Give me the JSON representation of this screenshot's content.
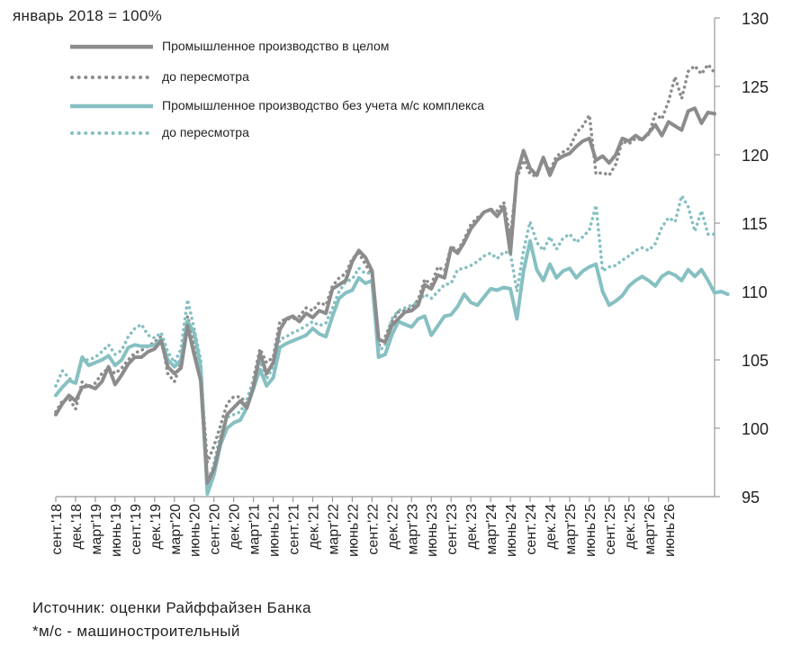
{
  "chart_data": {
    "type": "line",
    "ylabel": "январь 2018 = 100%",
    "ylim": [
      95,
      130
    ],
    "y_ticks": [
      95,
      100,
      105,
      110,
      115,
      120,
      125,
      130
    ],
    "y_axis_side": "right",
    "x_tick_labels": [
      "сент.'18",
      "дек.'18",
      "март'19",
      "июнь'19",
      "сент.'19",
      "дек.'19",
      "март'20",
      "июнь'20",
      "сент.'20",
      "дек.'20",
      "март'21",
      "июнь'21",
      "сент.'21",
      "дек.'21",
      "март'22",
      "июнь'22",
      "сент.'22",
      "дек.'22",
      "март'23",
      "июнь'23",
      "сент.'23",
      "дек.'23",
      "март'24",
      "июнь'24",
      "сент.'24",
      "дек.'24",
      "март'25",
      "июнь'25",
      "сент.'25",
      "дек.'25",
      "март'26",
      "июнь'26"
    ],
    "x_start": "сент.'18",
    "x_step_months": 3,
    "grid": false,
    "legend_position": "top-left",
    "series": [
      {
        "name": "Промышленное производство в целом",
        "style": "solid",
        "color": "#8c8c8c",
        "values": [
          101.0,
          101.8,
          102.4,
          102.0,
          103.0,
          103.1,
          102.9,
          103.4,
          104.5,
          103.2,
          103.9,
          104.7,
          105.2,
          105.2,
          105.6,
          105.8,
          106.4,
          104.5,
          104.0,
          104.4,
          107.5,
          105.4,
          103.5,
          96.0,
          97.0,
          99.0,
          101.0,
          101.5,
          102.0,
          101.5,
          103.0,
          105.5,
          104.0,
          104.8,
          107.2,
          108.0,
          108.2,
          107.8,
          108.4,
          108.1,
          108.6,
          108.4,
          110.2,
          110.5,
          110.8,
          112.2,
          113.0,
          112.5,
          111.5,
          106.5,
          106.3,
          107.5,
          108.0,
          108.5,
          108.6,
          109.0,
          110.5,
          110.2,
          111.2,
          111.0,
          113.2,
          112.8,
          113.6,
          114.6,
          115.2,
          115.8,
          116.0,
          115.5,
          116.2,
          112.8,
          118.6,
          120.3,
          119.0,
          118.5,
          119.8,
          118.5,
          119.6,
          119.9,
          120.1,
          120.6,
          121.0,
          121.2,
          119.6,
          119.9,
          119.4,
          120.0,
          121.2,
          121.0,
          121.4,
          121.1,
          121.6,
          122.2,
          121.4,
          122.4,
          122.1,
          121.8,
          123.2,
          123.4,
          122.3,
          123.1,
          123.0
        ]
      },
      {
        "name": "до пересмотра",
        "style": "dotted",
        "color": "#8c8c8c",
        "values": [
          101.2,
          102.0,
          102.2,
          101.4,
          103.4,
          103.0,
          103.3,
          104.0,
          104.4,
          104.0,
          104.4,
          105.0,
          105.5,
          105.7,
          106.0,
          106.3,
          106.7,
          104.0,
          103.4,
          104.8,
          108.2,
          106.3,
          104.0,
          97.5,
          98.7,
          100.2,
          101.8,
          102.3,
          102.3,
          101.8,
          103.6,
          105.8,
          104.8,
          105.2,
          107.8,
          108.0,
          108.0,
          108.2,
          108.8,
          108.6,
          109.2,
          109.0,
          110.4,
          111.0,
          111.3,
          112.4,
          112.8,
          112.0,
          111.2,
          106.0,
          106.7,
          107.8,
          108.5,
          108.6,
          108.8,
          109.4,
          110.9,
          110.5,
          111.8,
          111.5,
          113.3,
          113.0,
          113.8,
          114.9,
          115.4,
          115.8,
          116.0,
          115.9,
          116.5,
          114.0,
          118.3,
          119.6,
          118.6,
          118.4,
          119.7,
          118.8,
          119.9,
          120.2,
          120.5,
          121.6,
          122.1,
          122.9,
          118.6,
          118.7,
          118.5,
          119.3,
          121.0,
          120.8,
          121.2,
          121.1,
          121.5,
          123.0,
          122.6,
          123.9,
          125.7,
          124.1,
          126.1,
          126.5,
          125.9,
          126.6,
          126.0
        ]
      },
      {
        "name": "Промышленное производство без учета м/с комплекса",
        "style": "solid",
        "color": "#86c0c2",
        "values": [
          102.4,
          103.0,
          103.5,
          103.3,
          105.2,
          104.6,
          104.8,
          105.0,
          105.3,
          104.6,
          105.0,
          105.9,
          106.1,
          106.0,
          106.0,
          106.1,
          106.5,
          105.0,
          104.5,
          105.0,
          107.8,
          107.0,
          104.5,
          95.2,
          96.6,
          98.8,
          100.0,
          100.4,
          100.6,
          101.5,
          102.9,
          104.3,
          103.1,
          103.7,
          105.9,
          106.2,
          106.4,
          106.6,
          106.8,
          107.3,
          106.9,
          106.7,
          108.2,
          109.5,
          109.9,
          110.1,
          111.0,
          110.6,
          110.8,
          105.2,
          105.4,
          106.8,
          107.8,
          107.6,
          107.4,
          108.0,
          108.2,
          106.8,
          107.5,
          108.2,
          108.3,
          108.9,
          109.8,
          109.2,
          109.0,
          109.6,
          110.2,
          110.1,
          110.3,
          110.2,
          108.0,
          111.5,
          113.7,
          111.6,
          110.8,
          112.0,
          111.0,
          111.5,
          111.7,
          111.0,
          111.5,
          111.8,
          112.0,
          110.0,
          109.0,
          109.3,
          109.7,
          110.4,
          110.8,
          111.1,
          110.8,
          110.4,
          111.1,
          111.4,
          111.2,
          110.8,
          111.6,
          111.1,
          111.6,
          110.8,
          109.9,
          110.0,
          109.8
        ]
      },
      {
        "name": "до пересмотра",
        "style": "dotted",
        "color": "#86c0c2",
        "values": [
          103.1,
          104.2,
          103.7,
          103.2,
          105.0,
          105.0,
          105.2,
          105.6,
          106.1,
          105.4,
          105.7,
          106.7,
          107.3,
          107.6,
          106.8,
          106.6,
          107.0,
          105.6,
          104.8,
          105.8,
          109.4,
          107.3,
          105.0,
          96.0,
          97.4,
          99.6,
          100.8,
          101.0,
          101.2,
          102.1,
          103.5,
          104.9,
          103.6,
          104.5,
          106.5,
          106.7,
          107.0,
          107.2,
          107.5,
          107.8,
          107.5,
          107.7,
          108.8,
          110.0,
          110.7,
          110.9,
          111.7,
          111.3,
          111.4,
          105.6,
          106.1,
          108.0,
          108.6,
          108.8,
          109.0,
          109.2,
          109.8,
          109.5,
          110.0,
          110.5,
          110.6,
          111.6,
          111.7,
          111.9,
          112.2,
          112.6,
          112.8,
          112.4,
          112.9,
          112.8,
          110.0,
          113.0,
          115.1,
          113.6,
          113.0,
          114.0,
          113.1,
          113.9,
          114.2,
          113.6,
          114.0,
          114.5,
          116.3,
          111.5,
          111.8,
          111.9,
          112.3,
          112.6,
          113.0,
          113.2,
          113.0,
          113.5,
          114.7,
          115.4,
          115.1,
          117.0,
          116.2,
          114.4,
          115.9,
          114.2,
          114.2
        ]
      }
    ]
  },
  "footer": {
    "source": "Источник: оценки Райффайзен Банка",
    "note": "*м/с - машиностроительный"
  }
}
